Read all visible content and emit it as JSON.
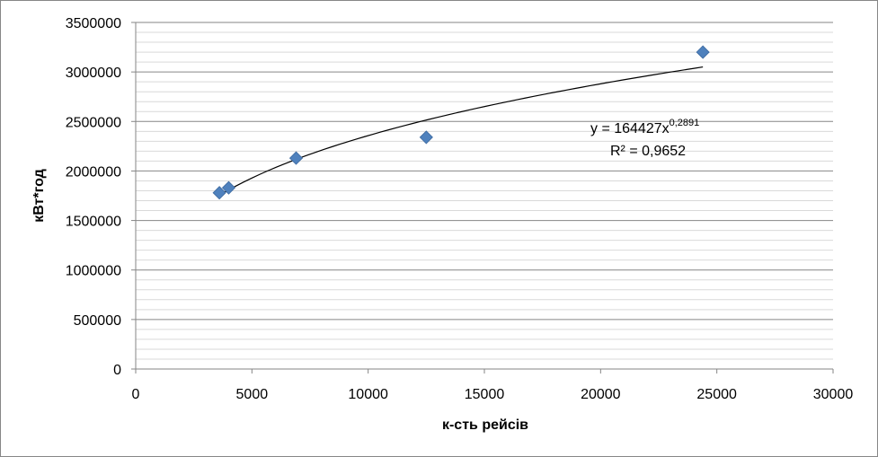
{
  "chart_data": {
    "type": "scatter",
    "title": "",
    "xlabel": "к-сть рейсів",
    "ylabel": "кВт*год",
    "xlim": [
      0,
      30000
    ],
    "ylim": [
      0,
      3500000
    ],
    "x_ticks": [
      0,
      5000,
      10000,
      15000,
      20000,
      25000,
      30000
    ],
    "y_ticks": [
      0,
      500000,
      1000000,
      1500000,
      2000000,
      2500000,
      3000000,
      3500000
    ],
    "grid": "horizontal",
    "marker_color": "#4F81BD",
    "points": [
      {
        "x": 3600,
        "y": 1780000
      },
      {
        "x": 4000,
        "y": 1830000
      },
      {
        "x": 6900,
        "y": 2130000
      },
      {
        "x": 12500,
        "y": 2340000
      },
      {
        "x": 24400,
        "y": 3200000
      }
    ],
    "trendline": {
      "type": "power",
      "coefficient": 164427,
      "exponent": 0.2891,
      "x_range": [
        3600,
        24400
      ],
      "equation_prefix": "y = 164427x",
      "equation_exponent": "0,2891",
      "r_squared_label": "R² = 0,9652"
    }
  }
}
